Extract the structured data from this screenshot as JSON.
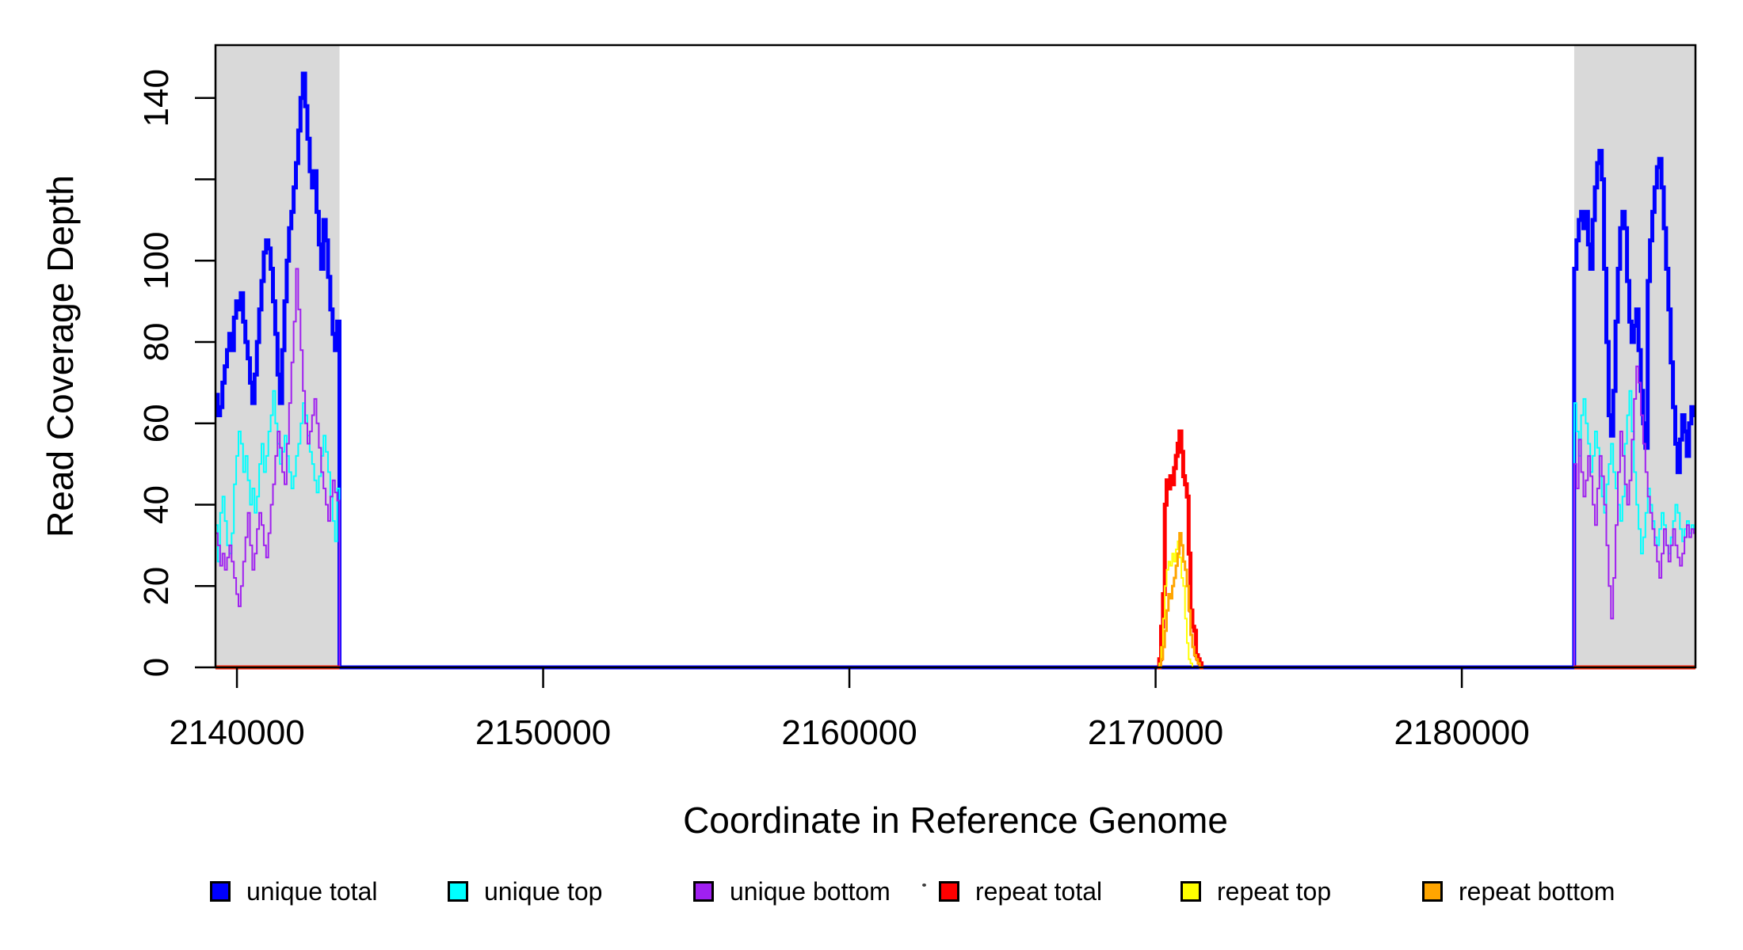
{
  "chart_data": {
    "type": "line",
    "title": "",
    "xlabel": "Coordinate in Reference Genome",
    "ylabel": "Read Coverage Depth",
    "xlim": [
      2139300,
      2187630
    ],
    "ylim": [
      0,
      153
    ],
    "x_ticks": [
      2140000,
      2150000,
      2160000,
      2170000,
      2180000
    ],
    "x_tick_labels": [
      "2140000",
      "2150000",
      "2160000",
      "2170000",
      "2180000"
    ],
    "y_ticks": [
      0,
      20,
      40,
      60,
      80,
      100,
      120,
      140
    ],
    "y_tick_labels": [
      "0",
      "20",
      "40",
      "60",
      "80",
      "100",
      "",
      "140"
    ],
    "grid": false,
    "legend_position": "bottom",
    "line_style": "step",
    "background_color": "#FFFFFF",
    "highlight_regions": [
      {
        "name": "shaded-region-left",
        "x0": 2139300,
        "x1": 2143350,
        "color": "#D9D9D9"
      },
      {
        "name": "shaded-region-right",
        "x0": 2183670,
        "x1": 2187630,
        "color": "#D9D9D9"
      }
    ],
    "series": [
      {
        "name": "unique total",
        "color": "#0000FF",
        "line_width": 5,
        "segments": [
          [
            [
              2139300,
              75,
              [
                67,
                62,
                64,
                70,
                74,
                78,
                82,
                78,
                86,
                90,
                88,
                92,
                85,
                80,
                76,
                70,
                65,
                72,
                80,
                88,
                95,
                102,
                105,
                103,
                98,
                90,
                82,
                72,
                65,
                78,
                90,
                100,
                108,
                112,
                118,
                124,
                132,
                140,
                146,
                138,
                130,
                122,
                118,
                122,
                112,
                104,
                98,
                110,
                105,
                96,
                88,
                82,
                78,
                85
              ]
            ],
            [
              2143350,
              40320,
              [
                0
              ]
            ],
            [
              2183670,
              75,
              [
                98,
                105,
                110,
                112,
                108,
                112,
                104,
                98,
                110,
                118,
                124,
                127,
                120,
                98,
                80,
                62,
                57,
                68,
                85,
                98,
                108,
                112,
                108,
                95,
                85,
                80,
                84,
                88,
                78,
                68,
                60,
                54,
                95,
                105,
                112,
                118,
                123,
                125,
                118,
                108,
                98,
                88,
                75,
                64,
                55,
                48,
                56,
                62,
                58,
                52,
                60,
                64,
                62
              ]
            ]
          ]
        ]
      },
      {
        "name": "unique top",
        "color": "#00FFFF",
        "line_width": 2,
        "segments": [
          [
            [
              2139300,
              75,
              [
                35,
                26,
                38,
                42,
                36,
                30,
                28,
                33,
                45,
                52,
                58,
                55,
                48,
                52,
                46,
                40,
                44,
                38,
                42,
                50,
                55,
                48,
                52,
                58,
                62,
                68,
                60,
                55,
                50,
                53,
                57,
                52,
                48,
                44,
                47,
                52,
                55,
                60,
                65,
                62,
                57,
                53,
                50,
                46,
                43,
                47,
                52,
                57,
                53,
                48,
                42,
                36,
                31,
                44
              ]
            ],
            [
              2143350,
              40320,
              [
                0
              ]
            ],
            [
              2183670,
              75,
              [
                65,
                58,
                52,
                62,
                66,
                60,
                55,
                48,
                52,
                58,
                54,
                47,
                42,
                38,
                45,
                50,
                55,
                48,
                44,
                40,
                36,
                42,
                55,
                62,
                68,
                58,
                48,
                40,
                34,
                28,
                32,
                38,
                44,
                40,
                36,
                32,
                30,
                34,
                38,
                35,
                30,
                28,
                32,
                36,
                40,
                38,
                34,
                31,
                34,
                36,
                33,
                35,
                34
              ]
            ]
          ]
        ]
      },
      {
        "name": "unique bottom",
        "color": "#A020F0",
        "line_width": 2,
        "segments": [
          [
            [
              2139300,
              75,
              [
                33,
                30,
                25,
                28,
                24,
                27,
                30,
                26,
                22,
                18,
                15,
                20,
                26,
                32,
                38,
                30,
                24,
                28,
                34,
                38,
                35,
                30,
                27,
                33,
                40,
                45,
                52,
                58,
                54,
                48,
                45,
                55,
                65,
                75,
                85,
                98,
                88,
                78,
                68,
                60,
                55,
                58,
                62,
                66,
                60,
                54,
                48,
                44,
                40,
                36,
                42,
                46,
                43,
                41
              ]
            ],
            [
              2143350,
              40320,
              [
                0
              ]
            ],
            [
              2183670,
              75,
              [
                50,
                44,
                56,
                48,
                42,
                46,
                52,
                47,
                40,
                35,
                44,
                52,
                47,
                40,
                30,
                20,
                12,
                22,
                35,
                48,
                58,
                52,
                45,
                40,
                46,
                56,
                66,
                74,
                70,
                62,
                55,
                48,
                42,
                38,
                34,
                30,
                26,
                22,
                28,
                34,
                30,
                26,
                30,
                34,
                30,
                27,
                25,
                28,
                32,
                35,
                32,
                34,
                33
              ]
            ]
          ]
        ]
      },
      {
        "name": "repeat total",
        "color": "#FF0000",
        "line_width": 5,
        "segments": [
          [
            [
              2139300,
              4050,
              [
                0
              ]
            ]
          ],
          [
            [
              2170060,
              60,
              [
                0,
                2,
                10,
                18,
                40,
                46,
                44,
                47,
                45,
                49,
                52,
                55,
                58,
                53,
                47,
                45,
                42,
                28,
                14,
                10,
                9,
                3,
                2,
                1,
                0
              ]
            ]
          ],
          [
            [
              2183670,
              3960,
              [
                0
              ]
            ]
          ]
        ]
      },
      {
        "name": "repeat top",
        "color": "#FFFF00",
        "line_width": 2,
        "segments": [
          [
            [
              2139300,
              4050,
              [
                0
              ]
            ]
          ],
          [
            [
              2170060,
              60,
              [
                0,
                1,
                5,
                12,
                20,
                24,
                26,
                25,
                28,
                26,
                29,
                31,
                27,
                22,
                20,
                12,
                6,
                2,
                1,
                0,
                0,
                0,
                0,
                0,
                0
              ]
            ]
          ],
          [
            [
              2183670,
              3960,
              [
                0
              ]
            ]
          ]
        ]
      },
      {
        "name": "repeat bottom",
        "color": "#FFA500",
        "line_width": 3,
        "segments": [
          [
            [
              2139300,
              4050,
              [
                0
              ]
            ]
          ],
          [
            [
              2170060,
              60,
              [
                0,
                0,
                2,
                5,
                9,
                14,
                18,
                17,
                20,
                22,
                25,
                28,
                33,
                30,
                26,
                24,
                20,
                14,
                8,
                5,
                3,
                2,
                1,
                0,
                0
              ]
            ]
          ],
          [
            [
              2183670,
              3960,
              [
                0
              ]
            ]
          ]
        ]
      }
    ],
    "legend": [
      {
        "label": "unique total",
        "color": "#0000FF"
      },
      {
        "label": "unique top",
        "color": "#00FFFF"
      },
      {
        "label": "unique bottom",
        "color": "#A020F0"
      },
      {
        "label": "repeat total",
        "color": "#FF0000"
      },
      {
        "label": "repeat top",
        "color": "#FFFF00"
      },
      {
        "label": "repeat bottom",
        "color": "#FFA500"
      }
    ]
  }
}
